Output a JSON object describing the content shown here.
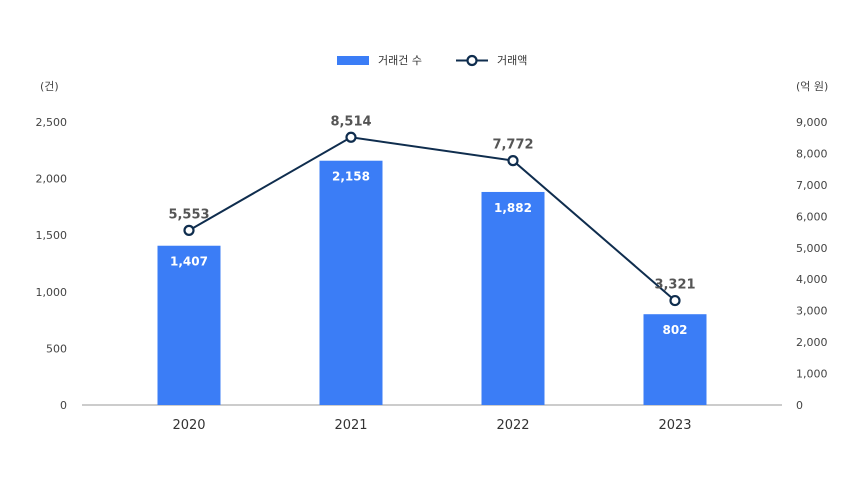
{
  "chart_data": {
    "type": "bar",
    "categories": [
      "2020",
      "2021",
      "2022",
      "2023"
    ],
    "series": [
      {
        "name": "거래건 수",
        "type": "bar",
        "axis": "left",
        "color": "#3b7df6",
        "values": [
          1407,
          2158,
          1882,
          802
        ],
        "labels": [
          "1,407",
          "2,158",
          "1,882",
          "802"
        ]
      },
      {
        "name": "거래액",
        "type": "line",
        "axis": "right",
        "color": "#0f2d4e",
        "values": [
          5553,
          8514,
          7772,
          3321
        ],
        "labels": [
          "5,553",
          "8,514",
          "7,772",
          "3,321"
        ]
      }
    ],
    "y_left": {
      "unit": "(건)",
      "min": 0,
      "max": 2500,
      "ticks": [
        0,
        500,
        1000,
        1500,
        2000,
        2500
      ],
      "tick_labels": [
        "0",
        "500",
        "1,000",
        "1,500",
        "2,000",
        "2,500"
      ]
    },
    "y_right": {
      "unit": "(억 원)",
      "min": 0,
      "max": 9000,
      "ticks": [
        0,
        1000,
        2000,
        3000,
        4000,
        5000,
        6000,
        7000,
        8000,
        9000
      ],
      "tick_labels": [
        "0",
        "1,000",
        "2,000",
        "3,000",
        "4,000",
        "5,000",
        "6,000",
        "7,000",
        "8,000",
        "9,000"
      ]
    },
    "grid": false,
    "legend": "top-center"
  }
}
